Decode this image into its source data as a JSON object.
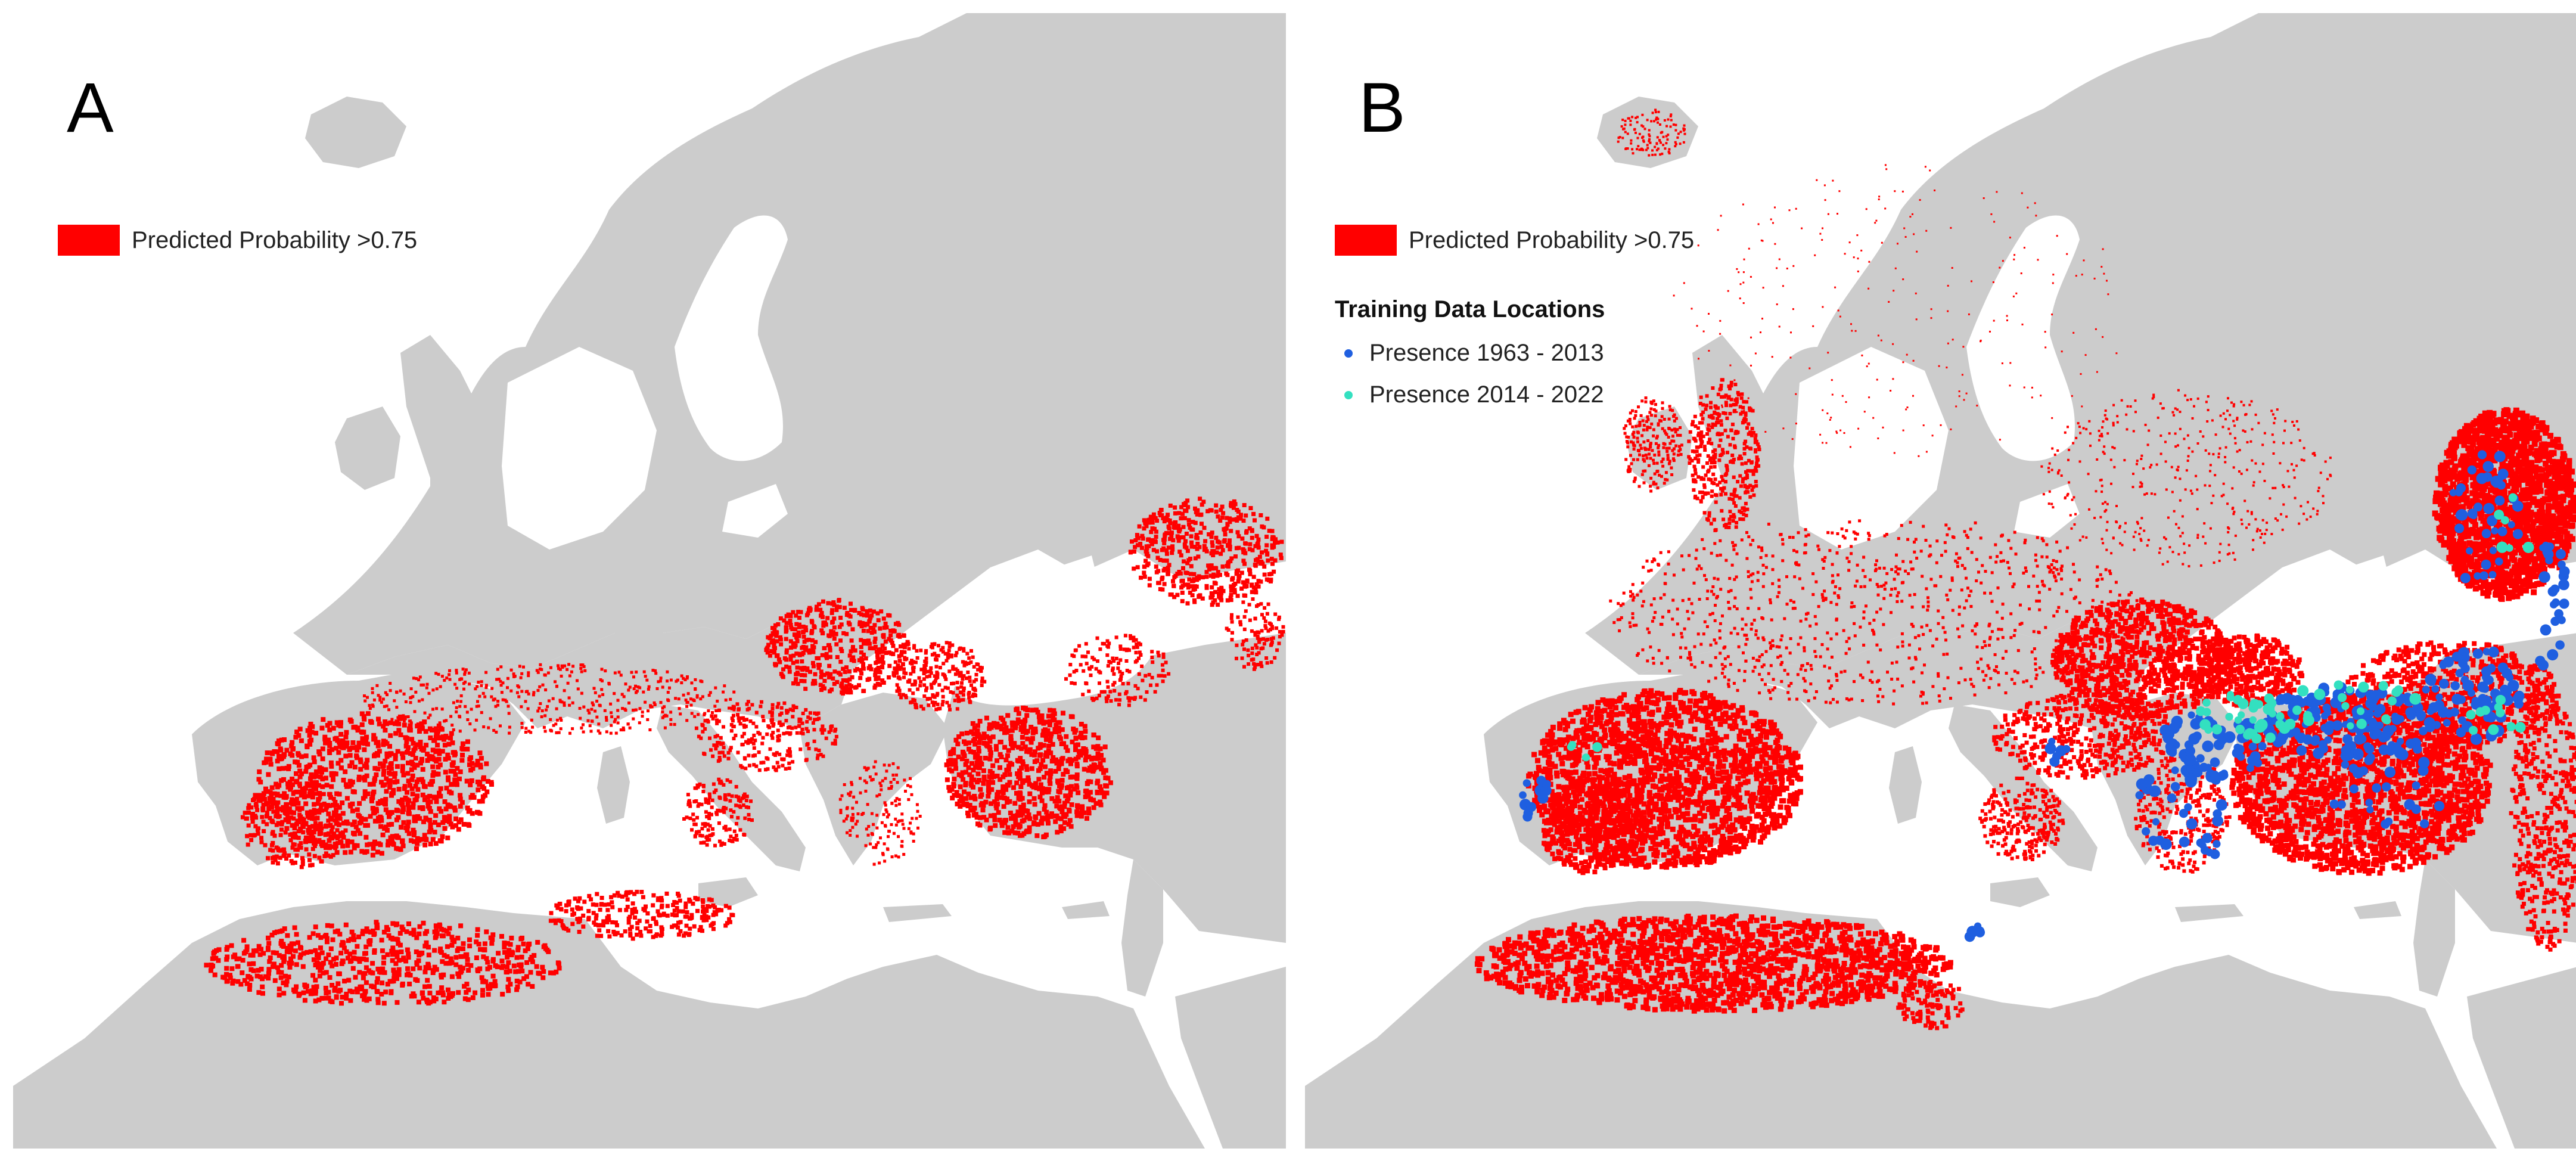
{
  "colors": {
    "land": "#cccccc",
    "sea": "#ffffff",
    "probability": "#ff0000",
    "presence_early": "#1f5fe0",
    "presence_late": "#33e0c0"
  },
  "panel_a": {
    "label": "A",
    "legend": {
      "probability_label": "Predicted Probability >0.75"
    }
  },
  "panel_b": {
    "label": "B",
    "legend": {
      "probability_label": "Predicted Probability >0.75",
      "title": "Training Data Locations",
      "presence_early_label": "Presence 1963 - 2013",
      "presence_late_label": "Presence 2014 - 2022"
    }
  }
}
